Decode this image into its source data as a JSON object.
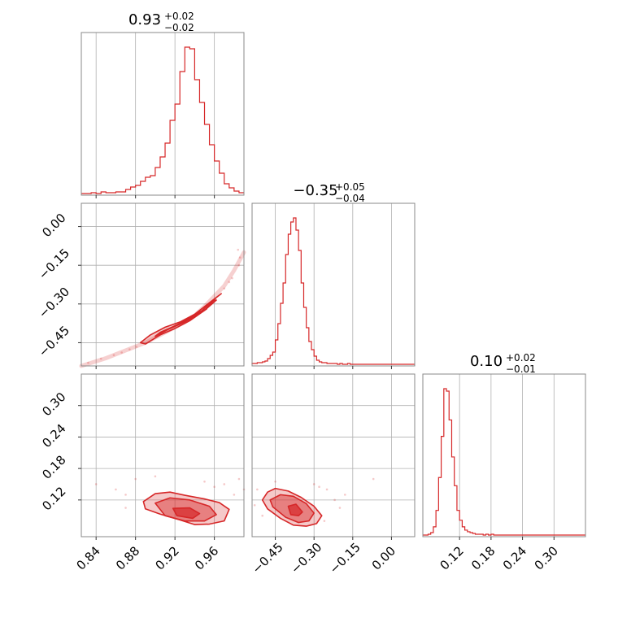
{
  "chart_data": {
    "type": "corner",
    "color": "#d62728",
    "grid": true,
    "parameters": [
      {
        "title": {
          "median": "0.93",
          "plus": "+0.02",
          "minus": "−0.02"
        },
        "range": [
          0.825,
          0.99
        ],
        "ticks": [
          0.84,
          0.88,
          0.92,
          0.96
        ],
        "tick_labels": [
          "0.84",
          "0.88",
          "0.92",
          "0.96"
        ],
        "hist": {
          "x": [
            0.825,
            0.83,
            0.835,
            0.84,
            0.845,
            0.85,
            0.855,
            0.86,
            0.865,
            0.87,
            0.875,
            0.88,
            0.885,
            0.89,
            0.895,
            0.9,
            0.905,
            0.91,
            0.915,
            0.92,
            0.925,
            0.93,
            0.935,
            0.94,
            0.945,
            0.95,
            0.955,
            0.96,
            0.965,
            0.97,
            0.975,
            0.98,
            0.985
          ],
          "counts": [
            0,
            0,
            1,
            0,
            2,
            1,
            1,
            2,
            2,
            5,
            8,
            10,
            15,
            20,
            22,
            32,
            45,
            62,
            90,
            110,
            150,
            180,
            178,
            140,
            112,
            85,
            60,
            40,
            25,
            12,
            7,
            3,
            1
          ]
        }
      },
      {
        "title": {
          "median": "−0.35",
          "plus": "+0.05",
          "minus": "−0.04"
        },
        "range": [
          -0.54,
          0.09
        ],
        "ticks": [
          -0.45,
          -0.3,
          -0.15,
          0.0
        ],
        "tick_labels": [
          "−0.45",
          "−0.30",
          "−0.15",
          "0.00"
        ],
        "hist": {
          "x": [
            -0.54,
            -0.53,
            -0.52,
            -0.51,
            -0.5,
            -0.49,
            -0.48,
            -0.47,
            -0.46,
            -0.45,
            -0.44,
            -0.43,
            -0.42,
            -0.41,
            -0.4,
            -0.39,
            -0.38,
            -0.37,
            -0.36,
            -0.35,
            -0.34,
            -0.33,
            -0.32,
            -0.31,
            -0.3,
            -0.29,
            -0.28,
            -0.27,
            -0.26,
            -0.25,
            -0.24,
            -0.23,
            -0.22,
            -0.21,
            -0.2,
            -0.19,
            -0.18,
            -0.17,
            -0.16,
            -0.15,
            -0.14,
            -0.13,
            -0.12,
            -0.11,
            -0.1,
            -0.09,
            -0.08,
            -0.07,
            -0.06,
            -0.05,
            -0.04,
            -0.03,
            -0.02,
            -0.01,
            0.0,
            0.01,
            0.02,
            0.03,
            0.04,
            0.05,
            0.06,
            0.07,
            0.08
          ],
          "counts": [
            1,
            1,
            2,
            2,
            3,
            4,
            7,
            11,
            15,
            30,
            50,
            75,
            100,
            135,
            160,
            175,
            180,
            165,
            140,
            100,
            70,
            45,
            28,
            18,
            10,
            5,
            3,
            2,
            2,
            1,
            1,
            1,
            1,
            0,
            1,
            0,
            0,
            1,
            0,
            0,
            0,
            0,
            0,
            0,
            0,
            0,
            0,
            0,
            0,
            0,
            0,
            0,
            0,
            0,
            0,
            0,
            0,
            0,
            0,
            0,
            0,
            0,
            0
          ]
        }
      },
      {
        "title": {
          "median": "0.10",
          "plus": "+0.02",
          "minus": "−0.01"
        },
        "range": [
          0.05,
          0.36
        ],
        "ticks": [
          0.12,
          0.18,
          0.24,
          0.3
        ],
        "tick_labels": [
          "0.12",
          "0.18",
          "0.24",
          "0.30"
        ],
        "hist": {
          "x": [
            0.05,
            0.055,
            0.06,
            0.065,
            0.07,
            0.075,
            0.08,
            0.085,
            0.09,
            0.095,
            0.1,
            0.105,
            0.11,
            0.115,
            0.12,
            0.125,
            0.13,
            0.135,
            0.14,
            0.145,
            0.15,
            0.155,
            0.16,
            0.165,
            0.17,
            0.175,
            0.18,
            0.185,
            0.19,
            0.195,
            0.2,
            0.205,
            0.21,
            0.215,
            0.22,
            0.225,
            0.23,
            0.235,
            0.24,
            0.245,
            0.25,
            0.255,
            0.26,
            0.265,
            0.27,
            0.275,
            0.28,
            0.285,
            0.29,
            0.295,
            0.3,
            0.305,
            0.31,
            0.315,
            0.32,
            0.325,
            0.33,
            0.335,
            0.34,
            0.345,
            0.35,
            0.355
          ],
          "counts": [
            0,
            0,
            1,
            3,
            10,
            30,
            70,
            120,
            178,
            175,
            140,
            95,
            60,
            30,
            18,
            10,
            6,
            4,
            3,
            2,
            1,
            1,
            1,
            0,
            1,
            0,
            1,
            0,
            0,
            0,
            0,
            0,
            0,
            0,
            0,
            0,
            0,
            0,
            0,
            0,
            0,
            0,
            0,
            0,
            0,
            0,
            0,
            0,
            0,
            0,
            0,
            0,
            0,
            0,
            0,
            0,
            0,
            0,
            0,
            0,
            0,
            0
          ]
        }
      }
    ],
    "pairs": [
      {
        "x_param": 0,
        "y_param": 1,
        "y_ticks": [
          0.0,
          -0.15,
          -0.3,
          -0.45
        ],
        "y_tick_labels": [
          "0.00",
          "−0.15",
          "−0.30",
          "−0.45"
        ],
        "curve": {
          "x": [
            0.825,
            0.85,
            0.87,
            0.89,
            0.91,
            0.92,
            0.93,
            0.94,
            0.95,
            0.96,
            0.97,
            0.98,
            0.99
          ],
          "y": [
            -0.54,
            -0.51,
            -0.48,
            -0.45,
            -0.41,
            -0.39,
            -0.37,
            -0.345,
            -0.31,
            -0.27,
            -0.23,
            -0.17,
            -0.1
          ]
        },
        "contours": [
          {
            "x": [
              0.89,
              0.905,
              0.92,
              0.935,
              0.95,
              0.962,
              0.967,
              0.955,
              0.94,
              0.925,
              0.91,
              0.895,
              0.885,
              0.89
            ],
            "y": [
              -0.455,
              -0.42,
              -0.395,
              -0.365,
              -0.325,
              -0.275,
              -0.26,
              -0.295,
              -0.34,
              -0.37,
              -0.39,
              -0.42,
              -0.45,
              -0.455
            ],
            "fill_opacity": 0.25
          },
          {
            "x": [
              0.9,
              0.915,
              0.93,
              0.945,
              0.957,
              0.962,
              0.95,
              0.935,
              0.92,
              0.905,
              0.9
            ],
            "y": [
              -0.425,
              -0.395,
              -0.37,
              -0.335,
              -0.29,
              -0.285,
              -0.325,
              -0.36,
              -0.385,
              -0.41,
              -0.425
            ],
            "fill_opacity": 0.45
          },
          {
            "x": [
              0.915,
              0.93,
              0.945,
              0.952,
              0.94,
              0.925,
              0.915
            ],
            "y": [
              -0.395,
              -0.365,
              -0.33,
              -0.32,
              -0.345,
              -0.375,
              -0.395
            ],
            "fill_opacity": 0.7
          }
        ],
        "scatter": {
          "x": [
            0.832,
            0.845,
            0.858,
            0.866,
            0.874,
            0.881,
            0.986,
            0.985,
            0.978,
            0.975,
            0.97,
            0.984
          ],
          "y": [
            -0.528,
            -0.512,
            -0.498,
            -0.488,
            -0.476,
            -0.466,
            -0.12,
            -0.15,
            -0.2,
            -0.215,
            -0.24,
            -0.09
          ]
        }
      },
      {
        "x_param": 0,
        "y_param": 2,
        "y_ticks": [
          0.3,
          0.24,
          0.18,
          0.12
        ],
        "y_tick_labels": [
          "0.30",
          "0.24",
          "0.18",
          "0.12"
        ],
        "contours": [
          {
            "x": [
              0.888,
              0.9,
              0.915,
              0.93,
              0.95,
              0.965,
              0.975,
              0.97,
              0.955,
              0.94,
              0.925,
              0.905,
              0.89,
              0.888
            ],
            "y": [
              0.117,
              0.132,
              0.135,
              0.129,
              0.122,
              0.115,
              0.102,
              0.08,
              0.074,
              0.073,
              0.082,
              0.093,
              0.103,
              0.117
            ],
            "fill_opacity": 0.25
          },
          {
            "x": [
              0.9,
              0.915,
              0.935,
              0.955,
              0.962,
              0.95,
              0.93,
              0.91,
              0.9
            ],
            "y": [
              0.114,
              0.124,
              0.12,
              0.108,
              0.092,
              0.08,
              0.08,
              0.09,
              0.114
            ],
            "fill_opacity": 0.45
          },
          {
            "x": [
              0.918,
              0.935,
              0.945,
              0.938,
              0.922,
              0.918
            ],
            "y": [
              0.104,
              0.105,
              0.094,
              0.085,
              0.09,
              0.104
            ],
            "fill_opacity": 0.7
          }
        ],
        "scatter": {
          "x": [
            0.84,
            0.86,
            0.87,
            0.88,
            0.97,
            0.98,
            0.985,
            0.99,
            0.9,
            0.87,
            0.96,
            0.95
          ],
          "y": [
            0.15,
            0.14,
            0.13,
            0.16,
            0.15,
            0.13,
            0.16,
            0.14,
            0.165,
            0.105,
            0.145,
            0.155
          ]
        }
      },
      {
        "x_param": 1,
        "y_param": 2,
        "contours": [
          {
            "x": [
              -0.5,
              -0.48,
              -0.45,
              -0.4,
              -0.35,
              -0.3,
              -0.27,
              -0.29,
              -0.33,
              -0.38,
              -0.43,
              -0.48,
              -0.5
            ],
            "y": [
              0.12,
              0.135,
              0.142,
              0.137,
              0.125,
              0.108,
              0.09,
              0.075,
              0.07,
              0.072,
              0.085,
              0.103,
              0.12
            ],
            "fill_opacity": 0.25
          },
          {
            "x": [
              -0.47,
              -0.43,
              -0.38,
              -0.33,
              -0.3,
              -0.32,
              -0.36,
              -0.41,
              -0.46,
              -0.47
            ],
            "y": [
              0.12,
              0.13,
              0.127,
              0.113,
              0.095,
              0.08,
              0.077,
              0.087,
              0.107,
              0.12
            ],
            "fill_opacity": 0.45
          },
          {
            "x": [
              -0.4,
              -0.37,
              -0.345,
              -0.36,
              -0.39,
              -0.4
            ],
            "y": [
              0.108,
              0.112,
              0.097,
              0.09,
              0.092,
              0.108
            ],
            "fill_opacity": 0.7
          }
        ],
        "scatter": {
          "x": [
            -0.52,
            -0.53,
            -0.25,
            -0.22,
            -0.2,
            -0.07,
            -0.45,
            -0.3,
            -0.28,
            -0.5,
            -0.26,
            -0.18
          ],
          "y": [
            0.14,
            0.11,
            0.14,
            0.12,
            0.105,
            0.16,
            0.155,
            0.15,
            0.145,
            0.09,
            0.08,
            0.13
          ]
        }
      }
    ]
  }
}
